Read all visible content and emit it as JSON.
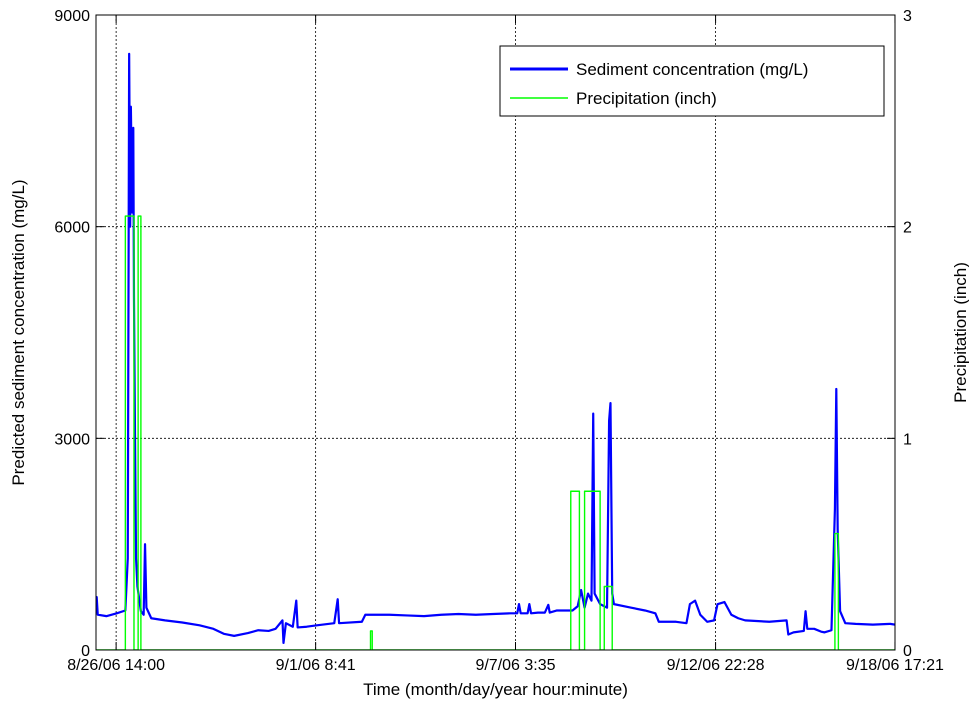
{
  "chart_data": {
    "type": "line",
    "title": "",
    "xlabel": "Time (month/day/year hour:minute)",
    "ylabel_left": "Predicted sediment concentration (mg/L)",
    "ylabel_right": "Precipitation (inch)",
    "x_unit": "days",
    "xlim": [
      0,
      23.14
    ],
    "ylim_left": [
      0,
      9000
    ],
    "ylim_right": [
      0,
      3
    ],
    "x_ticks": [
      {
        "x": 0.583,
        "label": "8/26/06 14:00"
      },
      {
        "x": 6.361,
        "label": "9/1/06 8:41"
      },
      {
        "x": 12.149,
        "label": "9/7/06 3:35"
      },
      {
        "x": 17.944,
        "label": "9/12/06 22:28"
      },
      {
        "x": 23.139,
        "label": "9/18/06 17:21"
      }
    ],
    "y_ticks_left": [
      "0",
      "3000",
      "6000",
      "9000"
    ],
    "y_ticks_right": [
      "0",
      "1",
      "2",
      "3"
    ],
    "grid": true,
    "legend_position": "top-right",
    "colors": {
      "sediment": "#0000ff",
      "precip": "#00ff00"
    },
    "series": [
      {
        "name": "Sediment concentration (mg/L)",
        "axis": "left",
        "color": "#0000ff",
        "points": [
          [
            0.0,
            600
          ],
          [
            0.02,
            750
          ],
          [
            0.05,
            500
          ],
          [
            0.3,
            480
          ],
          [
            0.6,
            520
          ],
          [
            0.85,
            560
          ],
          [
            0.92,
            1300
          ],
          [
            0.96,
            8450
          ],
          [
            0.99,
            6000
          ],
          [
            1.01,
            7700
          ],
          [
            1.05,
            6200
          ],
          [
            1.08,
            7400
          ],
          [
            1.1,
            5000
          ],
          [
            1.13,
            3000
          ],
          [
            1.16,
            1300
          ],
          [
            1.2,
            900
          ],
          [
            1.3,
            550
          ],
          [
            1.38,
            500
          ],
          [
            1.42,
            1500
          ],
          [
            1.46,
            600
          ],
          [
            1.6,
            450
          ],
          [
            2.0,
            420
          ],
          [
            2.5,
            390
          ],
          [
            3.0,
            350
          ],
          [
            3.4,
            300
          ],
          [
            3.7,
            230
          ],
          [
            4.0,
            200
          ],
          [
            4.4,
            240
          ],
          [
            4.7,
            280
          ],
          [
            5.0,
            270
          ],
          [
            5.2,
            300
          ],
          [
            5.4,
            420
          ],
          [
            5.43,
            100
          ],
          [
            5.5,
            380
          ],
          [
            5.7,
            330
          ],
          [
            5.8,
            700
          ],
          [
            5.84,
            320
          ],
          [
            6.1,
            330
          ],
          [
            6.4,
            350
          ],
          [
            6.9,
            380
          ],
          [
            7.0,
            720
          ],
          [
            7.04,
            380
          ],
          [
            7.7,
            400
          ],
          [
            7.8,
            500
          ],
          [
            8.5,
            500
          ],
          [
            9.0,
            490
          ],
          [
            9.5,
            480
          ],
          [
            10.0,
            500
          ],
          [
            10.5,
            510
          ],
          [
            11.0,
            500
          ],
          [
            11.5,
            510
          ],
          [
            12.0,
            520
          ],
          [
            12.2,
            520
          ],
          [
            12.25,
            650
          ],
          [
            12.3,
            520
          ],
          [
            12.5,
            520
          ],
          [
            12.55,
            650
          ],
          [
            12.6,
            520
          ],
          [
            12.8,
            530
          ],
          [
            13.0,
            530
          ],
          [
            13.1,
            640
          ],
          [
            13.14,
            530
          ],
          [
            13.35,
            560
          ],
          [
            13.5,
            560
          ],
          [
            13.8,
            560
          ],
          [
            13.95,
            620
          ],
          [
            14.05,
            850
          ],
          [
            14.15,
            600
          ],
          [
            14.25,
            800
          ],
          [
            14.35,
            700
          ],
          [
            14.4,
            3350
          ],
          [
            14.44,
            800
          ],
          [
            14.6,
            650
          ],
          [
            14.8,
            600
          ],
          [
            14.86,
            3250
          ],
          [
            14.9,
            3500
          ],
          [
            14.95,
            800
          ],
          [
            15.0,
            650
          ],
          [
            15.5,
            600
          ],
          [
            15.9,
            560
          ],
          [
            16.2,
            520
          ],
          [
            16.3,
            400
          ],
          [
            16.8,
            400
          ],
          [
            17.1,
            380
          ],
          [
            17.2,
            650
          ],
          [
            17.35,
            700
          ],
          [
            17.5,
            500
          ],
          [
            17.7,
            400
          ],
          [
            17.9,
            420
          ],
          [
            18.0,
            650
          ],
          [
            18.2,
            680
          ],
          [
            18.4,
            500
          ],
          [
            18.6,
            450
          ],
          [
            18.8,
            420
          ],
          [
            19.5,
            400
          ],
          [
            20.0,
            420
          ],
          [
            20.05,
            220
          ],
          [
            20.2,
            250
          ],
          [
            20.5,
            270
          ],
          [
            20.55,
            550
          ],
          [
            20.6,
            300
          ],
          [
            20.8,
            300
          ],
          [
            21.0,
            260
          ],
          [
            21.1,
            250
          ],
          [
            21.3,
            280
          ],
          [
            21.4,
            2000
          ],
          [
            21.44,
            3700
          ],
          [
            21.48,
            1700
          ],
          [
            21.55,
            550
          ],
          [
            21.7,
            380
          ],
          [
            22.0,
            370
          ],
          [
            22.5,
            360
          ],
          [
            23.0,
            370
          ],
          [
            23.14,
            360
          ]
        ]
      },
      {
        "name": "Precipitation (inch)",
        "axis": "right",
        "color": "#00ff00",
        "points": [
          [
            0.0,
            0
          ],
          [
            0.85,
            0
          ],
          [
            0.85,
            2.05
          ],
          [
            1.1,
            2.05
          ],
          [
            1.1,
            0
          ],
          [
            1.22,
            0
          ],
          [
            1.22,
            2.05
          ],
          [
            1.3,
            2.05
          ],
          [
            1.3,
            0
          ],
          [
            7.95,
            0
          ],
          [
            7.95,
            0.09
          ],
          [
            8.0,
            0.09
          ],
          [
            8.0,
            0
          ],
          [
            13.75,
            0
          ],
          [
            13.75,
            0.75
          ],
          [
            14.0,
            0.75
          ],
          [
            14.0,
            0
          ],
          [
            14.15,
            0
          ],
          [
            14.15,
            0.75
          ],
          [
            14.6,
            0.75
          ],
          [
            14.6,
            0
          ],
          [
            14.72,
            0
          ],
          [
            14.72,
            0.3
          ],
          [
            14.95,
            0.3
          ],
          [
            14.95,
            0
          ],
          [
            21.4,
            0
          ],
          [
            21.4,
            0.55
          ],
          [
            21.5,
            0.55
          ],
          [
            21.5,
            0
          ],
          [
            23.14,
            0
          ]
        ]
      }
    ]
  }
}
